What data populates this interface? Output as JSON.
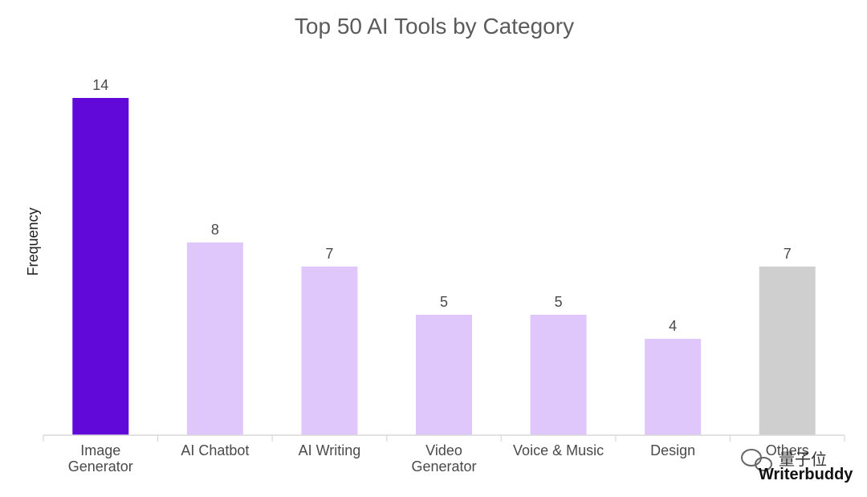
{
  "chart_data": {
    "type": "bar",
    "title": "Top 50 AI Tools by Category",
    "xlabel": "",
    "ylabel": "Frequency",
    "categories": [
      "Image Generator",
      "AI Chatbot",
      "AI Writing",
      "Video Generator",
      "Voice & Music",
      "Design",
      "Others"
    ],
    "category_lines": [
      [
        "Image",
        "Generator"
      ],
      [
        "AI Chatbot"
      ],
      [
        "AI Writing"
      ],
      [
        "Video",
        "Generator"
      ],
      [
        "Voice & Music"
      ],
      [
        "Design"
      ],
      [
        "Others"
      ]
    ],
    "values": [
      14,
      8,
      7,
      5,
      5,
      4,
      7
    ],
    "bar_colors": [
      "#6109d8",
      "#dfc7fc",
      "#dfc7fc",
      "#dfc7fc",
      "#dfc7fc",
      "#dfc7fc",
      "#d0cfd0"
    ],
    "ylim": [
      0,
      14
    ],
    "grid": false,
    "legend": "none"
  },
  "watermark": {
    "brand": "Writerbuddy",
    "overlay": "量子位",
    "brand_color": "#111111",
    "accent_color": "#e63b2e"
  }
}
